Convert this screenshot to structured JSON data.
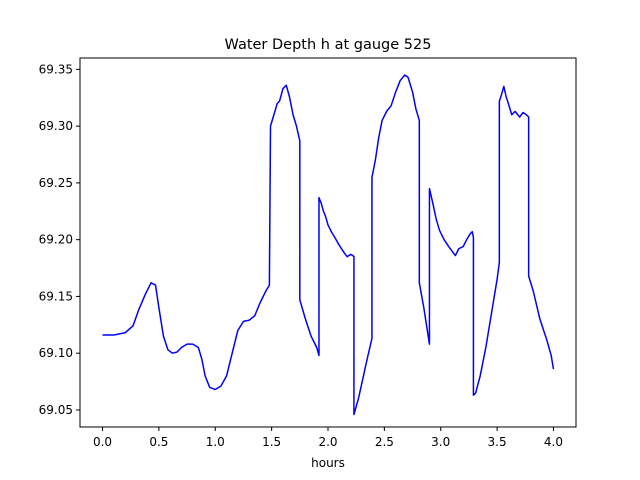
{
  "chart_data": {
    "type": "line",
    "title": "Water Depth h at gauge 525",
    "xlabel": "hours",
    "ylabel": "",
    "xlim": [
      -0.2,
      4.2
    ],
    "ylim": [
      69.035,
      69.36
    ],
    "x_ticks": [
      0.0,
      0.5,
      1.0,
      1.5,
      2.0,
      2.5,
      3.0,
      3.5,
      4.0
    ],
    "x_tick_labels": [
      "0.0",
      "0.5",
      "1.0",
      "1.5",
      "2.0",
      "2.5",
      "3.0",
      "3.5",
      "4.0"
    ],
    "y_ticks": [
      69.05,
      69.1,
      69.15,
      69.2,
      69.25,
      69.3,
      69.35
    ],
    "y_tick_labels": [
      "69.05",
      "69.10",
      "69.15",
      "69.20",
      "69.25",
      "69.30",
      "69.35"
    ],
    "grid": false,
    "series": [
      {
        "color": "#0000ff",
        "x": [
          0.0,
          0.1,
          0.2,
          0.27,
          0.32,
          0.38,
          0.43,
          0.47,
          0.5,
          0.54,
          0.58,
          0.62,
          0.66,
          0.7,
          0.75,
          0.8,
          0.85,
          0.88,
          0.91,
          0.95,
          1.0,
          1.05,
          1.1,
          1.15,
          1.2,
          1.25,
          1.3,
          1.35,
          1.4,
          1.45,
          1.48,
          1.49,
          1.49,
          1.52,
          1.55,
          1.57,
          1.6,
          1.63,
          1.66,
          1.69,
          1.72,
          1.75,
          1.75,
          1.8,
          1.85,
          1.9,
          1.92,
          1.92,
          1.94,
          1.96,
          1.98,
          2.0,
          2.03,
          2.06,
          2.1,
          2.14,
          2.17,
          2.2,
          2.22,
          2.23,
          2.23,
          2.27,
          2.31,
          2.35,
          2.39,
          2.39,
          2.42,
          2.45,
          2.48,
          2.52,
          2.56,
          2.6,
          2.64,
          2.68,
          2.71,
          2.75,
          2.78,
          2.81,
          2.81,
          2.85,
          2.9,
          2.9,
          2.93,
          2.96,
          2.99,
          3.03,
          3.07,
          3.1,
          3.13,
          3.16,
          3.2,
          3.23,
          3.26,
          3.28,
          3.29,
          3.29,
          3.31,
          3.35,
          3.4,
          3.45,
          3.5,
          3.52,
          3.52,
          3.54,
          3.56,
          3.58,
          3.6,
          3.63,
          3.66,
          3.7,
          3.73,
          3.76,
          3.78,
          3.78,
          3.82,
          3.88,
          3.94,
          3.98,
          4.0
        ],
        "y": [
          69.116,
          69.116,
          69.118,
          69.124,
          69.138,
          69.152,
          69.162,
          69.16,
          69.14,
          69.115,
          69.103,
          69.1,
          69.101,
          69.105,
          69.108,
          69.108,
          69.105,
          69.095,
          69.08,
          69.07,
          69.068,
          69.071,
          69.08,
          69.1,
          69.12,
          69.128,
          69.129,
          69.133,
          69.145,
          69.155,
          69.16,
          69.3,
          69.3,
          69.31,
          69.32,
          69.322,
          69.333,
          69.336,
          69.325,
          69.31,
          69.3,
          69.287,
          69.147,
          69.13,
          69.115,
          69.105,
          69.098,
          69.237,
          69.232,
          69.225,
          69.22,
          69.213,
          69.207,
          69.202,
          69.195,
          69.189,
          69.185,
          69.187,
          69.186,
          69.185,
          69.046,
          69.06,
          69.078,
          69.096,
          69.113,
          69.255,
          69.27,
          69.29,
          69.305,
          69.313,
          69.318,
          69.33,
          69.34,
          69.345,
          69.343,
          69.33,
          69.315,
          69.305,
          69.162,
          69.14,
          69.108,
          69.245,
          69.232,
          69.218,
          69.208,
          69.2,
          69.194,
          69.19,
          69.186,
          69.192,
          69.194,
          69.2,
          69.205,
          69.207,
          69.202,
          69.063,
          69.065,
          69.08,
          69.105,
          69.135,
          69.165,
          69.18,
          69.322,
          69.328,
          69.335,
          69.326,
          69.32,
          69.31,
          69.313,
          69.308,
          69.312,
          69.31,
          69.308,
          69.168,
          69.155,
          69.13,
          69.112,
          69.098,
          69.086
        ]
      }
    ]
  }
}
